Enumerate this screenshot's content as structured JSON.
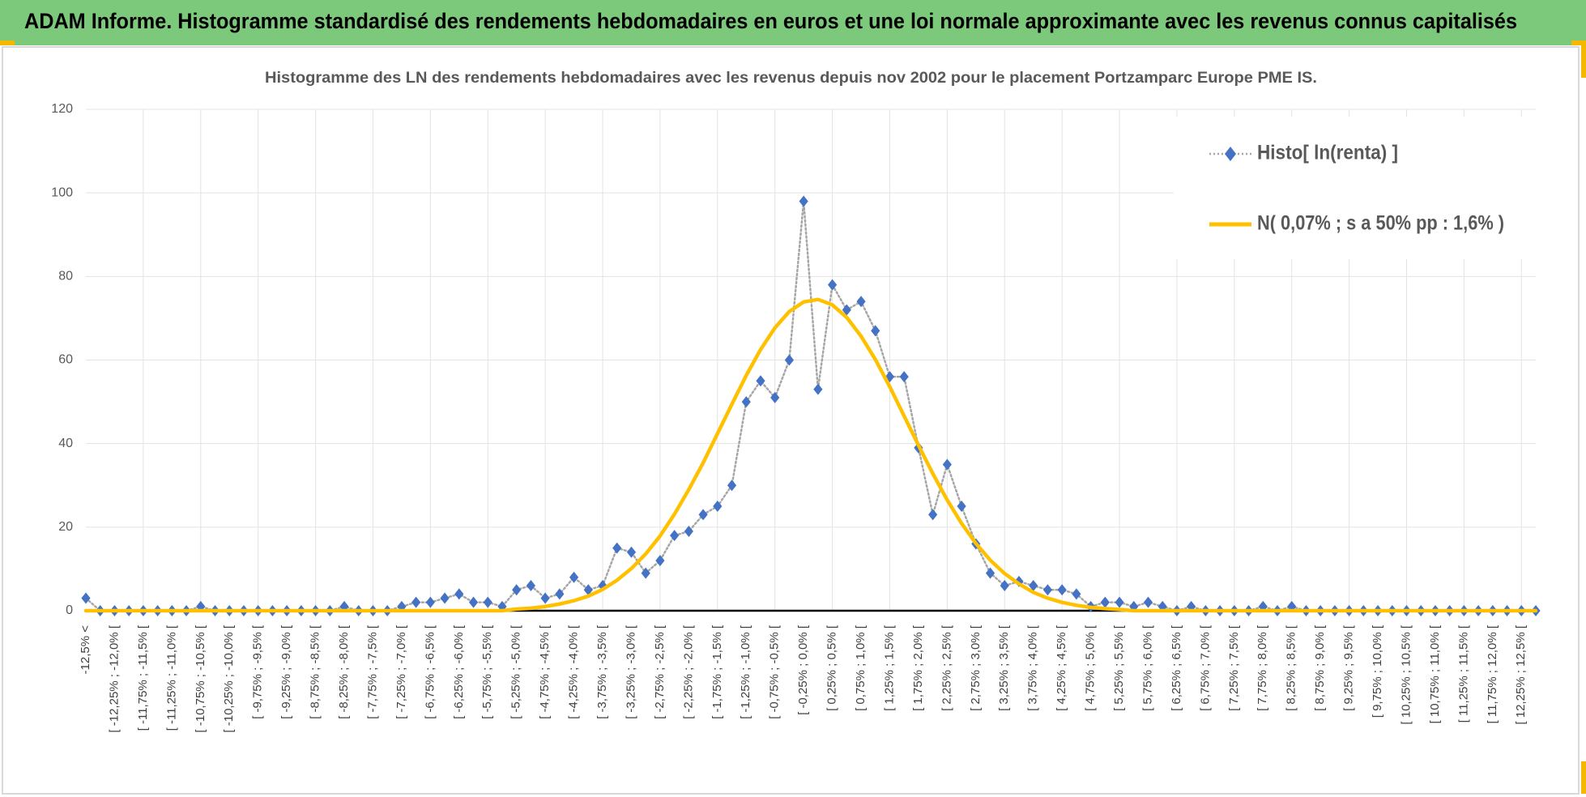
{
  "chart_data": {
    "type": "line",
    "header": "ADAM Informe. Histogramme standardisé des rendements hebdomadaires en euros et une loi normale approximante avec les revenus connus capitalisés",
    "title": "Histogramme des LN des rendements hebdomadaires avec les revenus depuis nov 2002 pour le placement Portzamparc Europe PME IS.",
    "categories": [
      "-12,5% <",
      null,
      "[ -12,25% ; -12,0% [",
      null,
      "[ -11,75% ; -11,5% [",
      null,
      "[ -11,25% ; -11,0% [",
      null,
      "[ -10,75% ; -10,5% [",
      null,
      "[ -10,25% ; -10,0% [",
      null,
      "[ -9,75% ; -9,5% [",
      null,
      "[ -9,25% ; -9,0% [",
      null,
      "[ -8,75% ; -8,5% [",
      null,
      "[ -8,25% ; -8,0% [",
      null,
      "[ -7,75% ; -7,5% [",
      null,
      "[ -7,25% ; -7,0% [",
      null,
      "[ -6,75% ; -6,5% [",
      null,
      "[ -6,25% ; -6,0% [",
      null,
      "[ -5,75% ; -5,5% [",
      null,
      "[ -5,25% ; -5,0% [",
      null,
      "[ -4,75% ; -4,5% [",
      null,
      "[ -4,25% ; -4,0% [",
      null,
      "[ -3,75% ; -3,5% [",
      null,
      "[ -3,25% ; -3,0% [",
      null,
      "[ -2,75% ; -2,5% [",
      null,
      "[ -2,25% ; -2,0% [",
      null,
      "[ -1,75% ; -1,5% [",
      null,
      "[ -1,25% ; -1,0% [",
      null,
      "[ -0,75% ; -0,5% [",
      null,
      "[ -0,25% ; 0,0% [",
      null,
      "[ 0,25% ; 0,5% [",
      null,
      "[ 0,75% ; 1,0% [",
      null,
      "[ 1,25% ; 1,5% [",
      null,
      "[ 1,75% ; 2,0% [",
      null,
      "[ 2,25% ; 2,5% [",
      null,
      "[ 2,75% ; 3,0% [",
      null,
      "[ 3,25% ; 3,5% [",
      null,
      "[ 3,75% ; 4,0% [",
      null,
      "[ 4,25% ; 4,5% [",
      null,
      "[ 4,75% ; 5,0% [",
      null,
      "[ 5,25% ; 5,5% [",
      null,
      "[ 5,75% ; 6,0% [",
      null,
      "[ 6,25% ; 6,5% [",
      null,
      "[ 6,75% ; 7,0% [",
      null,
      "[ 7,25% ; 7,5% [",
      null,
      "[ 7,75% ; 8,0% [",
      null,
      "[ 8,25% ; 8,5% [",
      null,
      "[ 8,75% ; 9,0% [",
      null,
      "[ 9,25% ; 9,5% [",
      null,
      "[ 9,75% ; 10,0% [",
      null,
      "[ 10,25% ; 10,5% [",
      null,
      "[ 10,75% ; 11,0% [",
      null,
      "[ 11,25% ; 11,5% [",
      null,
      "[ 11,75% ; 12,0% [",
      null,
      "[ 12,25% ; 12,5% [",
      null
    ],
    "series": [
      {
        "name": "Histo[ ln(renta) ]",
        "color": "#4472c4",
        "line_color": "#a6a6a6",
        "line_style": "dotted",
        "marker": "diamond",
        "values": [
          3,
          0,
          0,
          0,
          0,
          0,
          0,
          0,
          1,
          0,
          0,
          0,
          0,
          0,
          0,
          0,
          0,
          0,
          1,
          0,
          0,
          0,
          1,
          2,
          2,
          3,
          4,
          2,
          2,
          1,
          5,
          6,
          3,
          4,
          8,
          5,
          6,
          15,
          14,
          9,
          12,
          18,
          19,
          23,
          25,
          30,
          50,
          55,
          51,
          60,
          98,
          53,
          78,
          72,
          74,
          67,
          56,
          56,
          39,
          23,
          35,
          25,
          16,
          9,
          6,
          7,
          6,
          5,
          5,
          4,
          1,
          2,
          2,
          1,
          2,
          1,
          0,
          1,
          0,
          0,
          0,
          0,
          1,
          0,
          1,
          0,
          0,
          0,
          0,
          0,
          0,
          0,
          0,
          0,
          0,
          0,
          0,
          0,
          0,
          0,
          0,
          0
        ]
      },
      {
        "name": "N( 0,07% ; s a 50% pp : 1,6% )",
        "color": "#ffc000",
        "line_style": "solid",
        "marker": "none",
        "values": [
          0,
          0,
          0,
          0,
          0,
          0,
          0,
          0,
          0,
          0,
          0,
          0,
          0,
          0,
          0,
          0,
          0,
          0,
          0,
          0,
          0,
          0,
          0,
          0,
          0,
          0,
          0,
          0,
          0,
          0,
          0.4,
          0.6,
          1.0,
          1.6,
          2.4,
          3.5,
          5.1,
          7.3,
          10.1,
          13.6,
          17.9,
          23.1,
          29.0,
          35.4,
          42.4,
          49.4,
          56.3,
          62.5,
          67.7,
          71.6,
          73.9,
          74.5,
          73.2,
          70.2,
          65.7,
          60.1,
          53.6,
          46.6,
          39.6,
          32.8,
          26.5,
          20.9,
          16.1,
          12.1,
          8.9,
          6.4,
          4.4,
          3.0,
          2.0,
          1.3,
          0.8,
          0.5,
          0.3,
          0,
          0,
          0,
          0,
          0,
          0,
          0,
          0,
          0,
          0,
          0,
          0,
          0,
          0,
          0,
          0,
          0,
          0,
          0,
          0,
          0,
          0,
          0,
          0,
          0,
          0,
          0,
          0,
          0
        ]
      }
    ],
    "ylim": [
      0,
      120
    ],
    "yticks": [
      0,
      20,
      40,
      60,
      80,
      100,
      120
    ],
    "grid": true,
    "legend": "top-right"
  }
}
